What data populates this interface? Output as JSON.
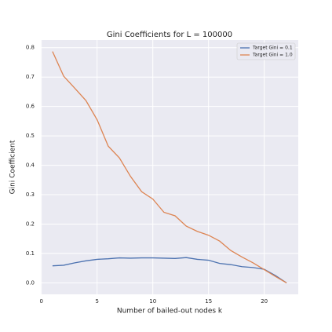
{
  "chart_data": {
    "type": "line",
    "title": "Gini Coefficients for L = 100000",
    "x_label": "Number of bailed-out nodes k",
    "y_label": "Gini Coefficient",
    "x": [
      1,
      2,
      3,
      4,
      5,
      6,
      7,
      8,
      9,
      10,
      11,
      12,
      13,
      14,
      15,
      16,
      17,
      18,
      19,
      20,
      21,
      22
    ],
    "series": [
      {
        "name": "Target Gini = 0.1",
        "color": "#4c72b0",
        "values": [
          0.058,
          0.06,
          0.068,
          0.075,
          0.08,
          0.082,
          0.085,
          0.084,
          0.085,
          0.085,
          0.084,
          0.083,
          0.086,
          0.08,
          0.077,
          0.066,
          0.062,
          0.055,
          0.052,
          0.046,
          0.025,
          0.0
        ]
      },
      {
        "name": "Target Gini = 1.0",
        "color": "#dd8452",
        "values": [
          0.787,
          0.703,
          0.662,
          0.62,
          0.555,
          0.465,
          0.425,
          0.362,
          0.31,
          0.285,
          0.24,
          0.228,
          0.193,
          0.175,
          0.162,
          0.142,
          0.11,
          0.088,
          0.068,
          0.045,
          0.022,
          0.0
        ]
      }
    ],
    "xlim": [
      -0.05,
      23.05
    ],
    "xticks": [
      0,
      5,
      10,
      15,
      20
    ],
    "ylim": [
      -0.039,
      0.826
    ],
    "yticks": [
      {
        "value": 0,
        "label": "0.0"
      },
      0.1,
      0.2,
      0.3,
      0.4,
      0.5,
      0.6,
      0.7,
      0.8
    ],
    "grid": true,
    "legend": "upper-right"
  }
}
